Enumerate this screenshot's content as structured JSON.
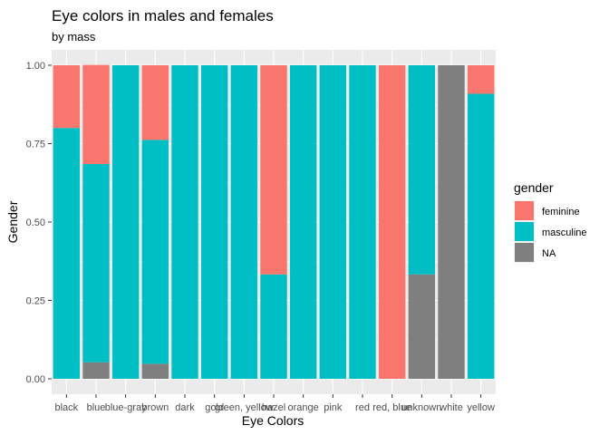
{
  "chart_data": {
    "type": "bar",
    "stacked": "fill",
    "title": "Eye colors in males and females",
    "subtitle": "by mass",
    "xlabel": "Eye Colors",
    "ylabel": "Gender",
    "ylim": [
      0,
      1
    ],
    "yticks": [
      "0.00",
      "0.25",
      "0.50",
      "0.75",
      "1.00"
    ],
    "categories": [
      "black",
      "blue",
      "blue-gray",
      "brown",
      "dark",
      "gold",
      "green, yellow",
      "hazel",
      "orange",
      "pink",
      "red",
      "red, blue",
      "unknown",
      "white",
      "yellow"
    ],
    "series": [
      {
        "name": "feminine",
        "color": "#F8766D",
        "values": [
          0.2,
          0.316,
          0,
          0.238,
          0,
          0,
          0,
          0.667,
          0,
          0,
          0,
          1,
          0,
          0,
          0.091
        ]
      },
      {
        "name": "masculine",
        "color": "#00BFC4",
        "values": [
          0.8,
          0.632,
          1,
          0.714,
          1,
          1,
          1,
          0.333,
          1,
          1,
          1,
          0,
          0.667,
          0,
          0.909
        ]
      },
      {
        "name": "NA",
        "color": "#7F7F7F",
        "values": [
          0,
          0.053,
          0,
          0.048,
          0,
          0,
          0,
          0,
          0,
          0,
          0,
          0,
          0.333,
          1,
          0
        ]
      }
    ],
    "legend_title": "gender",
    "legend_position": "right",
    "grid": true
  }
}
